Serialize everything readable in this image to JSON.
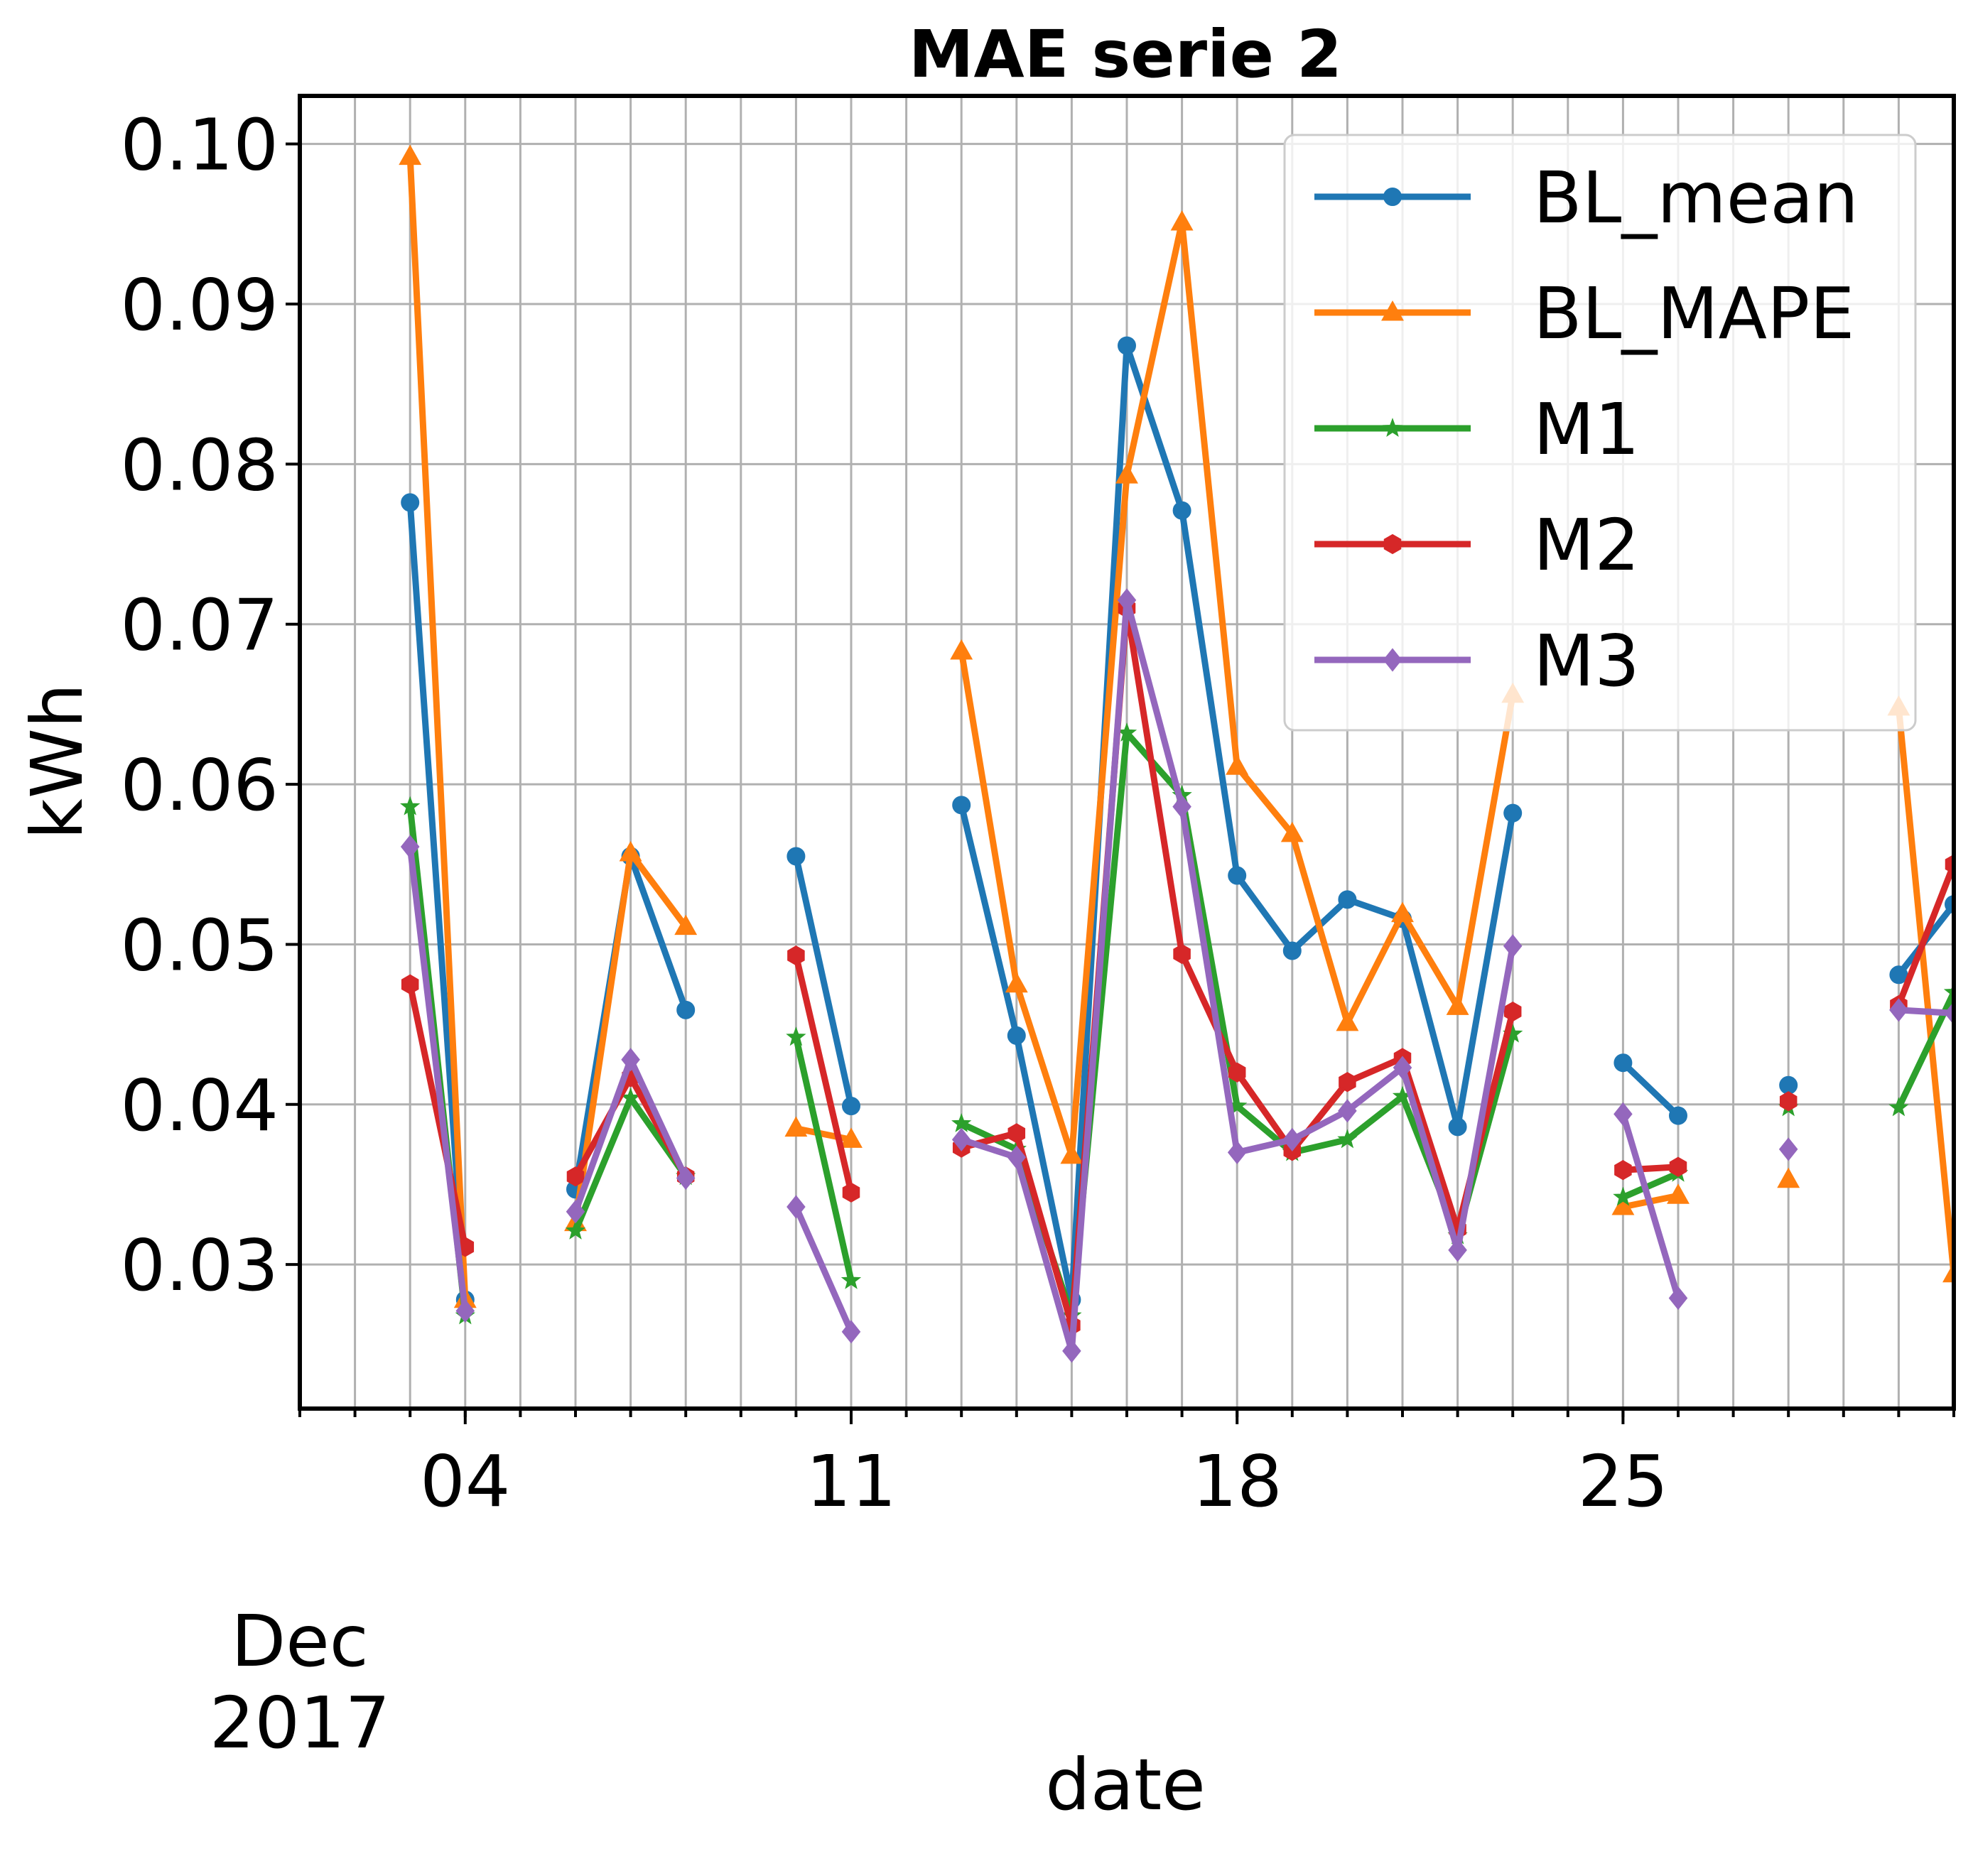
{
  "chart_data": {
    "type": "line",
    "title": "MAE serie 2",
    "xlabel": "date",
    "ylabel": "kWh",
    "x_range": [
      "2017-12-01",
      "2017-12-31"
    ],
    "ylim": [
      0.021,
      0.103
    ],
    "x_ticks": [
      {
        "date": "2017-12-04",
        "label": "04"
      },
      {
        "date": "2017-12-11",
        "label": "11"
      },
      {
        "date": "2017-12-18",
        "label": "18"
      },
      {
        "date": "2017-12-25",
        "label": "25"
      }
    ],
    "x_sublabel": [
      "Dec",
      "2017"
    ],
    "y_ticks": [
      {
        "value": 0.03,
        "label": "0.03"
      },
      {
        "value": 0.04,
        "label": "0.04"
      },
      {
        "value": 0.05,
        "label": "0.05"
      },
      {
        "value": 0.06,
        "label": "0.06"
      },
      {
        "value": 0.07,
        "label": "0.07"
      },
      {
        "value": 0.08,
        "label": "0.08"
      },
      {
        "value": 0.09,
        "label": "0.09"
      },
      {
        "value": 0.1,
        "label": "0.10"
      }
    ],
    "grid": true,
    "legend_position": "top-right",
    "x": [
      "2017-12-03",
      "2017-12-04",
      "2017-12-05",
      "2017-12-06",
      "2017-12-07",
      "2017-12-08",
      "2017-12-09",
      "2017-12-10",
      "2017-12-11",
      "2017-12-12",
      "2017-12-13",
      "2017-12-14",
      "2017-12-15",
      "2017-12-16",
      "2017-12-17",
      "2017-12-18",
      "2017-12-19",
      "2017-12-20",
      "2017-12-21",
      "2017-12-22",
      "2017-12-23",
      "2017-12-24",
      "2017-12-25",
      "2017-12-26",
      "2017-12-27",
      "2017-12-28",
      "2017-12-29",
      "2017-12-30",
      "2017-12-31"
    ],
    "series": [
      {
        "name": "BL_mean",
        "color": "#1f77b4",
        "marker": "circle",
        "values": [
          0.0776,
          0.0278,
          null,
          0.0347,
          0.0555,
          0.0459,
          null,
          0.0555,
          0.0399,
          null,
          0.0587,
          0.0443,
          0.0278,
          0.0874,
          0.0771,
          0.0543,
          0.0496,
          0.0528,
          0.0516,
          0.0386,
          0.0582,
          null,
          0.0426,
          0.0393,
          null,
          0.0412,
          null,
          0.0481,
          0.0525
        ]
      },
      {
        "name": "BL_MAPE",
        "color": "#ff7f0e",
        "marker": "triangle",
        "values": [
          0.0992,
          0.0278,
          null,
          0.0326,
          0.0557,
          0.0511,
          null,
          0.0385,
          0.0378,
          null,
          0.0683,
          0.0475,
          0.0368,
          0.0793,
          0.0951,
          0.0611,
          0.0569,
          0.0451,
          0.0519,
          0.0461,
          0.0656,
          null,
          0.0336,
          0.0343,
          null,
          0.0353,
          null,
          0.0648,
          0.0294
        ]
      },
      {
        "name": "M1",
        "color": "#2ca02c",
        "marker": "star",
        "values": [
          0.0586,
          0.0268,
          null,
          0.0321,
          0.0404,
          0.0355,
          null,
          0.0442,
          0.029,
          null,
          0.0388,
          0.0372,
          0.0268,
          0.0632,
          0.0593,
          0.0399,
          0.037,
          0.0378,
          0.0405,
          0.0318,
          0.0444,
          null,
          0.0342,
          0.0357,
          null,
          0.0398,
          null,
          0.0398,
          0.047
        ]
      },
      {
        "name": "M2",
        "color": "#d62728",
        "marker": "hexagon",
        "values": [
          0.0475,
          0.0311,
          null,
          0.0355,
          0.0417,
          0.0355,
          null,
          0.0493,
          0.0345,
          null,
          0.0373,
          0.0382,
          0.0262,
          0.071,
          0.0494,
          0.042,
          0.0371,
          0.0414,
          0.0429,
          0.0322,
          0.0458,
          null,
          0.0359,
          0.0361,
          null,
          0.0402,
          null,
          0.0462,
          0.055
        ]
      },
      {
        "name": "M3",
        "color": "#9467bd",
        "marker": "diamond",
        "values": [
          0.0561,
          0.0271,
          null,
          0.0333,
          0.0428,
          0.0354,
          null,
          0.0336,
          0.0258,
          null,
          0.0378,
          0.0367,
          0.0246,
          0.0715,
          0.0586,
          0.037,
          0.0378,
          0.0396,
          0.0423,
          0.0309,
          0.0499,
          null,
          0.0394,
          0.0279,
          null,
          0.0372,
          null,
          0.0459,
          0.0457
        ]
      }
    ]
  }
}
